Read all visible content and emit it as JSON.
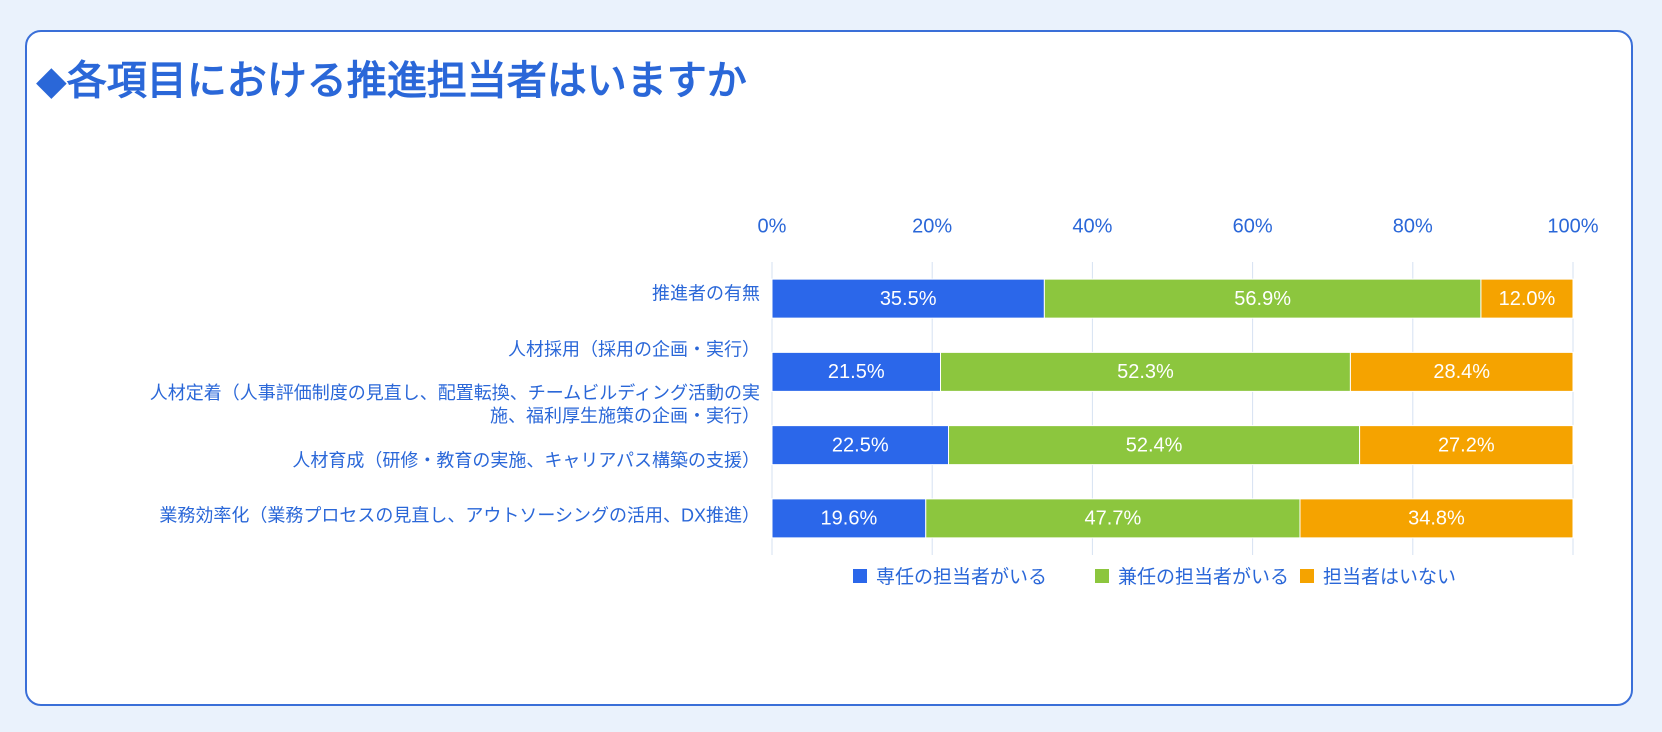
{
  "chart_data": {
    "type": "stacked-bar-100",
    "title": "◆各項目における推進担当者はいますか",
    "categories": [
      "推進者の有無",
      "人材採用（採用の企画・実行）",
      "人材定着（人事評価制度の見直し、配置転換、チームビルディング活動の実施、福利厚生施策の企画・実行）",
      "人材育成（研修・教育の実施、キャリアパス構築の支援）",
      "業務効率化（業務プロセスの見直し、アウトソーシングの活用、DX推進）"
    ],
    "series": [
      {
        "name": "専任の担当者がいる",
        "color": "#2b67ea",
        "values": [
          35.5,
          21.5,
          null,
          22.5,
          19.6
        ],
        "value_labels": [
          "35.5%",
          "21.5%",
          null,
          "22.5%",
          "19.6%"
        ]
      },
      {
        "name": "兼任の担当者がいる",
        "color": "#8cc63e",
        "values": [
          56.9,
          52.3,
          null,
          52.4,
          47.7
        ],
        "value_labels": [
          "56.9%",
          "52.3%",
          null,
          "52.4%",
          "47.7%"
        ]
      },
      {
        "name": "担当者はいない",
        "color": "#f5a300",
        "values": [
          12.0,
          28.4,
          null,
          27.2,
          34.8
        ],
        "value_labels": [
          "12.0%",
          "28.4%",
          null,
          "27.2%",
          "34.8%"
        ]
      }
    ],
    "xlim": [
      0,
      100
    ],
    "xticks": [
      {
        "value": 0,
        "label": "0%"
      },
      {
        "value": 20,
        "label": "20%"
      },
      {
        "value": 40,
        "label": "40%"
      },
      {
        "value": 60,
        "label": "60%"
      },
      {
        "value": 80,
        "label": "80%"
      },
      {
        "value": 100,
        "label": "100%"
      }
    ],
    "grid": true,
    "legend": "bottom"
  }
}
